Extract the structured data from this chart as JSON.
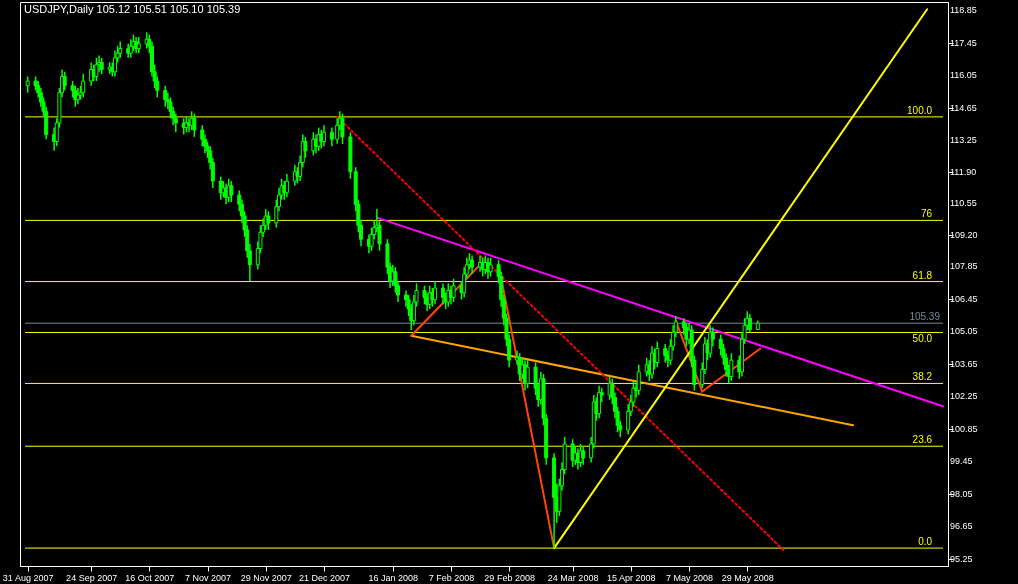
{
  "chart_data": {
    "type": "candlestick",
    "title": "USDJPY,Daily  105.12 105.51 105.10 105.39",
    "color": "#00ff00",
    "x": [
      "2007-08-31",
      "2007-09-03",
      "2007-09-04",
      "2007-09-05",
      "2007-09-06",
      "2007-09-07",
      "2007-09-10",
      "2007-09-11",
      "2007-09-12",
      "2007-09-13",
      "2007-09-14",
      "2007-09-17",
      "2007-09-18",
      "2007-09-19",
      "2007-09-20",
      "2007-09-21",
      "2007-09-24",
      "2007-09-25",
      "2007-09-26",
      "2007-09-27",
      "2007-09-28",
      "2007-10-01",
      "2007-10-02",
      "2007-10-03",
      "2007-10-04",
      "2007-10-05",
      "2007-10-08",
      "2007-10-09",
      "2007-10-10",
      "2007-10-11",
      "2007-10-12",
      "2007-10-15",
      "2007-10-16",
      "2007-10-17",
      "2007-10-18",
      "2007-10-19",
      "2007-10-22",
      "2007-10-23",
      "2007-10-24",
      "2007-10-25",
      "2007-10-26",
      "2007-10-29",
      "2007-10-30",
      "2007-10-31",
      "2007-11-01",
      "2007-11-02",
      "2007-11-05",
      "2007-11-06",
      "2007-11-07",
      "2007-11-08",
      "2007-11-09",
      "2007-11-12",
      "2007-11-13",
      "2007-11-14",
      "2007-11-15",
      "2007-11-16",
      "2007-11-19",
      "2007-11-20",
      "2007-11-21",
      "2007-11-22",
      "2007-11-23",
      "2007-11-26",
      "2007-11-27",
      "2007-11-28",
      "2007-11-29",
      "2007-11-30",
      "2007-12-03",
      "2007-12-04",
      "2007-12-05",
      "2007-12-06",
      "2007-12-07",
      "2007-12-10",
      "2007-12-11",
      "2007-12-12",
      "2007-12-13",
      "2007-12-14",
      "2007-12-17",
      "2007-12-18",
      "2007-12-19",
      "2007-12-20",
      "2007-12-21",
      "2007-12-24",
      "2007-12-26",
      "2007-12-27",
      "2007-12-28",
      "2007-12-31",
      "2008-01-02",
      "2008-01-03",
      "2008-01-04",
      "2008-01-07",
      "2008-01-08",
      "2008-01-09",
      "2008-01-10",
      "2008-01-11",
      "2008-01-14",
      "2008-01-15",
      "2008-01-16",
      "2008-01-17",
      "2008-01-18",
      "2008-01-21",
      "2008-01-22",
      "2008-01-23",
      "2008-01-24",
      "2008-01-25",
      "2008-01-28",
      "2008-01-29",
      "2008-01-30",
      "2008-01-31",
      "2008-02-01",
      "2008-02-04",
      "2008-02-05",
      "2008-02-06",
      "2008-02-07",
      "2008-02-08",
      "2008-02-11",
      "2008-02-12",
      "2008-02-13",
      "2008-02-14",
      "2008-02-15",
      "2008-02-18",
      "2008-02-19",
      "2008-02-20",
      "2008-02-21",
      "2008-02-22",
      "2008-02-25",
      "2008-02-26",
      "2008-02-27",
      "2008-02-28",
      "2008-02-29",
      "2008-03-03",
      "2008-03-04",
      "2008-03-05",
      "2008-03-06",
      "2008-03-07",
      "2008-03-10",
      "2008-03-11",
      "2008-03-12",
      "2008-03-13",
      "2008-03-14",
      "2008-03-17",
      "2008-03-18",
      "2008-03-19",
      "2008-03-20",
      "2008-03-21",
      "2008-03-24",
      "2008-03-25",
      "2008-03-26",
      "2008-03-27",
      "2008-03-28",
      "2008-03-31",
      "2008-04-01",
      "2008-04-02",
      "2008-04-03",
      "2008-04-04",
      "2008-04-07",
      "2008-04-08",
      "2008-04-09",
      "2008-04-10",
      "2008-04-11",
      "2008-04-14",
      "2008-04-15",
      "2008-04-16",
      "2008-04-17",
      "2008-04-18",
      "2008-04-21",
      "2008-04-22",
      "2008-04-23",
      "2008-04-24",
      "2008-04-25",
      "2008-04-28",
      "2008-04-29",
      "2008-04-30",
      "2008-05-01",
      "2008-05-02",
      "2008-05-05",
      "2008-05-06",
      "2008-05-07",
      "2008-05-08",
      "2008-05-09",
      "2008-05-12",
      "2008-05-13",
      "2008-05-14",
      "2008-05-15",
      "2008-05-16",
      "2008-05-19",
      "2008-05-20",
      "2008-05-21",
      "2008-05-22",
      "2008-05-23",
      "2008-05-26",
      "2008-05-27",
      "2008-05-28",
      "2008-05-29",
      "2008-05-30",
      "2008-06-02"
    ],
    "ohlc": [
      [
        115.6,
        116.0,
        115.3,
        115.8
      ],
      [
        115.8,
        116.0,
        115.4,
        115.6
      ],
      [
        115.6,
        115.8,
        115.1,
        115.3
      ],
      [
        115.3,
        115.5,
        114.7,
        114.9
      ],
      [
        114.9,
        115.1,
        114.3,
        114.5
      ],
      [
        114.5,
        114.7,
        113.3,
        113.5
      ],
      [
        113.5,
        113.8,
        112.8,
        113.2
      ],
      [
        113.2,
        114.2,
        113.0,
        114.0
      ],
      [
        114.0,
        115.5,
        113.8,
        115.3
      ],
      [
        115.3,
        116.3,
        115.1,
        116.0
      ],
      [
        116.0,
        116.2,
        115.4,
        115.6
      ],
      [
        115.6,
        115.8,
        115.1,
        115.4
      ],
      [
        115.4,
        115.6,
        114.7,
        115.0
      ],
      [
        115.0,
        115.5,
        114.8,
        115.2
      ],
      [
        115.2,
        115.6,
        115.0,
        115.3
      ],
      [
        115.3,
        116.1,
        115.1,
        115.8
      ],
      [
        115.8,
        116.6,
        115.6,
        116.3
      ],
      [
        116.3,
        116.5,
        115.8,
        116.0
      ],
      [
        116.0,
        116.8,
        115.8,
        116.5
      ],
      [
        116.5,
        116.9,
        116.2,
        116.6
      ],
      [
        116.6,
        116.8,
        116.1,
        116.3
      ],
      [
        116.3,
        116.6,
        116.1,
        116.4
      ],
      [
        116.4,
        116.6,
        116.0,
        116.2
      ],
      [
        116.2,
        117.1,
        116.0,
        116.8
      ],
      [
        116.8,
        117.3,
        116.6,
        117.0
      ],
      [
        117.0,
        117.5,
        116.8,
        117.2
      ],
      [
        117.2,
        117.4,
        116.8,
        117.0
      ],
      [
        117.0,
        117.6,
        116.8,
        117.3
      ],
      [
        117.3,
        117.8,
        117.1,
        117.5
      ],
      [
        117.5,
        117.7,
        117.0,
        117.2
      ],
      [
        117.2,
        117.7,
        117.0,
        117.4
      ],
      [
        117.4,
        117.9,
        117.2,
        117.6
      ],
      [
        117.6,
        117.8,
        117.0,
        117.3
      ],
      [
        117.3,
        117.5,
        116.0,
        116.2
      ],
      [
        116.2,
        116.5,
        115.5,
        115.8
      ],
      [
        115.8,
        116.0,
        115.1,
        115.4
      ],
      [
        115.4,
        115.6,
        114.7,
        115.0
      ],
      [
        115.0,
        115.3,
        114.6,
        114.9
      ],
      [
        114.9,
        115.1,
        114.2,
        114.5
      ],
      [
        114.5,
        114.7,
        113.9,
        114.2
      ],
      [
        114.2,
        114.4,
        113.6,
        114.0
      ],
      [
        114.0,
        114.2,
        113.5,
        113.8
      ],
      [
        113.8,
        114.3,
        113.6,
        114.0
      ],
      [
        114.0,
        114.2,
        113.6,
        113.9
      ],
      [
        113.9,
        114.5,
        113.7,
        114.2
      ],
      [
        114.2,
        114.4,
        113.4,
        113.7
      ],
      [
        113.7,
        113.9,
        113.0,
        113.3
      ],
      [
        113.3,
        113.5,
        112.7,
        113.0
      ],
      [
        113.0,
        113.2,
        112.5,
        112.8
      ],
      [
        112.8,
        113.0,
        112.0,
        112.3
      ],
      [
        112.3,
        112.5,
        111.2,
        111.5
      ],
      [
        111.5,
        111.7,
        110.7,
        111.0
      ],
      [
        111.0,
        111.5,
        110.8,
        111.2
      ],
      [
        111.2,
        111.4,
        110.5,
        110.8
      ],
      [
        110.8,
        111.6,
        110.6,
        111.3
      ],
      [
        111.3,
        111.5,
        110.6,
        110.9
      ],
      [
        110.9,
        111.1,
        110.2,
        110.5
      ],
      [
        110.5,
        110.7,
        109.7,
        110.0
      ],
      [
        110.0,
        110.2,
        109.1,
        109.4
      ],
      [
        109.4,
        109.6,
        108.2,
        108.5
      ],
      [
        108.5,
        108.8,
        107.2,
        107.9
      ],
      [
        107.9,
        108.9,
        107.7,
        108.6
      ],
      [
        108.6,
        109.6,
        108.4,
        109.3
      ],
      [
        109.3,
        109.9,
        109.1,
        109.6
      ],
      [
        109.6,
        110.3,
        109.4,
        110.0
      ],
      [
        110.0,
        110.2,
        109.4,
        109.7
      ],
      [
        109.7,
        110.7,
        109.5,
        110.4
      ],
      [
        110.4,
        111.2,
        110.2,
        110.9
      ],
      [
        110.9,
        111.6,
        110.7,
        111.3
      ],
      [
        111.3,
        111.5,
        110.7,
        111.0
      ],
      [
        111.0,
        111.8,
        110.8,
        111.5
      ],
      [
        111.5,
        112.2,
        111.3,
        111.9
      ],
      [
        111.9,
        112.1,
        111.4,
        111.7
      ],
      [
        111.7,
        112.6,
        111.5,
        112.3
      ],
      [
        112.3,
        113.5,
        112.1,
        113.2
      ],
      [
        113.2,
        113.4,
        112.5,
        112.8
      ],
      [
        112.8,
        113.6,
        112.6,
        113.3
      ],
      [
        113.3,
        113.5,
        112.7,
        113.0
      ],
      [
        113.0,
        113.8,
        112.8,
        113.5
      ],
      [
        113.5,
        113.7,
        112.9,
        113.2
      ],
      [
        113.2,
        113.9,
        113.0,
        113.6
      ],
      [
        113.6,
        113.8,
        113.0,
        113.3
      ],
      [
        113.3,
        114.2,
        113.1,
        113.9
      ],
      [
        113.9,
        114.5,
        113.7,
        114.2
      ],
      [
        114.2,
        114.4,
        113.1,
        113.4
      ],
      [
        113.4,
        113.6,
        111.6,
        111.9
      ],
      [
        111.9,
        112.1,
        110.2,
        110.5
      ],
      [
        110.5,
        110.7,
        109.3,
        109.6
      ],
      [
        109.6,
        109.8,
        108.7,
        109.0
      ],
      [
        109.0,
        109.2,
        108.4,
        108.7
      ],
      [
        108.7,
        109.5,
        108.5,
        109.2
      ],
      [
        109.2,
        109.8,
        109.0,
        109.5
      ],
      [
        109.5,
        110.3,
        109.3,
        109.6
      ],
      [
        109.6,
        109.8,
        108.5,
        108.8
      ],
      [
        108.8,
        109.0,
        107.5,
        107.8
      ],
      [
        107.8,
        108.0,
        106.9,
        107.2
      ],
      [
        107.2,
        107.9,
        107.0,
        107.6
      ],
      [
        107.6,
        107.8,
        106.7,
        107.0
      ],
      [
        107.0,
        107.2,
        106.3,
        106.6
      ],
      [
        106.6,
        106.8,
        106.1,
        106.4
      ],
      [
        106.4,
        106.6,
        105.7,
        106.0
      ],
      [
        106.0,
        106.2,
        105.1,
        105.5
      ],
      [
        105.5,
        106.6,
        105.3,
        106.3
      ],
      [
        106.3,
        107.1,
        106.1,
        106.8
      ],
      [
        106.8,
        107.0,
        106.2,
        106.5
      ],
      [
        106.5,
        106.7,
        105.9,
        106.2
      ],
      [
        106.2,
        107.0,
        106.0,
        106.7
      ],
      [
        106.7,
        106.9,
        106.1,
        106.4
      ],
      [
        106.4,
        107.2,
        106.2,
        106.9
      ],
      [
        106.9,
        107.1,
        106.2,
        106.5
      ],
      [
        106.5,
        106.7,
        106.0,
        106.3
      ],
      [
        106.3,
        107.1,
        106.1,
        106.8
      ],
      [
        106.8,
        107.0,
        106.2,
        106.5
      ],
      [
        106.5,
        107.3,
        106.3,
        107.0
      ],
      [
        107.0,
        107.2,
        106.4,
        106.7
      ],
      [
        106.7,
        107.8,
        106.5,
        107.5
      ],
      [
        107.5,
        108.2,
        107.3,
        107.9
      ],
      [
        107.9,
        108.4,
        107.7,
        108.1
      ],
      [
        108.1,
        108.3,
        107.5,
        107.8
      ],
      [
        107.8,
        108.3,
        107.6,
        108.0
      ],
      [
        108.0,
        108.2,
        107.4,
        107.7
      ],
      [
        107.7,
        108.3,
        107.5,
        108.0
      ],
      [
        108.0,
        108.2,
        107.3,
        107.6
      ],
      [
        107.6,
        108.2,
        107.4,
        107.9
      ],
      [
        107.9,
        108.1,
        107.1,
        107.4
      ],
      [
        107.4,
        107.6,
        106.1,
        106.4
      ],
      [
        106.4,
        106.6,
        105.3,
        105.6
      ],
      [
        105.6,
        105.8,
        104.4,
        104.7
      ],
      [
        104.7,
        104.9,
        103.5,
        103.8
      ],
      [
        103.8,
        104.2,
        103.6,
        103.9
      ],
      [
        103.9,
        104.1,
        102.9,
        103.2
      ],
      [
        103.2,
        103.9,
        103.0,
        103.6
      ],
      [
        103.6,
        103.8,
        102.5,
        102.8
      ],
      [
        102.8,
        103.8,
        102.6,
        103.5
      ],
      [
        103.5,
        103.7,
        102.3,
        102.6
      ],
      [
        102.6,
        102.8,
        101.8,
        102.1
      ],
      [
        102.1,
        103.3,
        101.9,
        103.0
      ],
      [
        103.0,
        103.2,
        101.0,
        101.3
      ],
      [
        101.3,
        101.5,
        99.3,
        99.6
      ],
      [
        99.6,
        99.8,
        95.72,
        97.9
      ],
      [
        97.9,
        98.5,
        96.8,
        97.3
      ],
      [
        97.3,
        98.7,
        97.1,
        98.4
      ],
      [
        98.4,
        99.4,
        98.2,
        99.1
      ],
      [
        99.1,
        100.5,
        98.9,
        100.2
      ],
      [
        100.2,
        100.4,
        99.2,
        99.5
      ],
      [
        99.5,
        100.1,
        99.3,
        99.8
      ],
      [
        99.8,
        100.0,
        99.1,
        99.4
      ],
      [
        99.4,
        100.2,
        99.2,
        99.9
      ],
      [
        99.9,
        100.1,
        99.3,
        99.6
      ],
      [
        99.6,
        100.5,
        99.4,
        100.2
      ],
      [
        100.2,
        102.3,
        100.0,
        102.0
      ],
      [
        102.0,
        102.2,
        101.2,
        101.5
      ],
      [
        101.5,
        102.7,
        101.3,
        102.4
      ],
      [
        102.4,
        102.6,
        102.0,
        102.3
      ],
      [
        102.3,
        103.1,
        102.1,
        102.8
      ],
      [
        102.8,
        103.0,
        101.9,
        102.2
      ],
      [
        102.2,
        102.4,
        101.3,
        101.6
      ],
      [
        101.6,
        101.8,
        100.7,
        101.0
      ],
      [
        101.0,
        101.2,
        100.5,
        100.8
      ],
      [
        100.8,
        101.9,
        100.6,
        101.6
      ],
      [
        101.6,
        102.3,
        101.4,
        102.0
      ],
      [
        102.0,
        102.9,
        101.8,
        102.6
      ],
      [
        102.6,
        102.8,
        102.2,
        102.5
      ],
      [
        102.5,
        103.6,
        102.3,
        103.3
      ],
      [
        103.3,
        103.9,
        103.1,
        103.6
      ],
      [
        103.6,
        103.8,
        102.9,
        103.2
      ],
      [
        103.2,
        104.4,
        103.0,
        104.1
      ],
      [
        104.1,
        104.3,
        103.4,
        103.7
      ],
      [
        103.7,
        104.6,
        103.5,
        104.3
      ],
      [
        104.3,
        104.5,
        103.7,
        104.0
      ],
      [
        104.0,
        104.2,
        103.5,
        103.8
      ],
      [
        103.8,
        104.7,
        103.6,
        104.4
      ],
      [
        104.4,
        105.3,
        104.2,
        105.0
      ],
      [
        105.0,
        105.7,
        104.8,
        105.45
      ],
      [
        105.45,
        105.6,
        104.9,
        105.2
      ],
      [
        105.2,
        105.4,
        104.4,
        104.7
      ],
      [
        104.7,
        105.4,
        104.5,
        105.1
      ],
      [
        105.1,
        105.3,
        103.5,
        103.8
      ],
      [
        103.8,
        104.0,
        102.5,
        102.75
      ],
      [
        102.75,
        103.7,
        102.6,
        103.4
      ],
      [
        103.4,
        104.8,
        103.2,
        104.5
      ],
      [
        104.5,
        104.7,
        103.8,
        104.1
      ],
      [
        104.1,
        105.3,
        103.9,
        105.0
      ],
      [
        105.0,
        105.2,
        104.4,
        104.7
      ],
      [
        104.7,
        104.9,
        104.0,
        104.3
      ],
      [
        104.3,
        104.5,
        103.6,
        103.9
      ],
      [
        103.9,
        104.1,
        103.1,
        103.4
      ],
      [
        103.4,
        103.6,
        102.8,
        103.1
      ],
      [
        103.1,
        104.1,
        102.9,
        103.8
      ],
      [
        103.8,
        104.0,
        103.0,
        103.3
      ],
      [
        103.3,
        105.0,
        103.1,
        104.7
      ],
      [
        104.7,
        105.6,
        104.5,
        105.3
      ],
      [
        105.3,
        105.9,
        105.1,
        105.6
      ],
      [
        105.6,
        105.8,
        105.0,
        105.12
      ],
      [
        105.12,
        105.51,
        105.1,
        105.39
      ]
    ],
    "series": [
      {
        "type": "line",
        "color": "#ff00ff",
        "line_style": "solid",
        "x": [
          "2008-01-10",
          "2008-08-11"
        ],
        "values": [
          109.93,
          101.82
        ]
      },
      {
        "type": "line",
        "color": "#ffa500",
        "line_style": "solid",
        "x": [
          "2008-01-23",
          "2008-07-08"
        ],
        "values": [
          104.85,
          101.0
        ]
      },
      {
        "type": "line",
        "color": "#ff4500",
        "line_style": "solid",
        "x": [
          "2008-01-23",
          "2008-02-18"
        ],
        "values": [
          104.85,
          107.9
        ]
      },
      {
        "type": "line",
        "color": "#ff4500",
        "line_style": "solid",
        "x": [
          "2008-02-25",
          "2008-03-17"
        ],
        "values": [
          107.9,
          95.72
        ]
      },
      {
        "type": "line",
        "color": "#ff4500",
        "line_style": "solid",
        "x": [
          "2008-05-02",
          "2008-05-12"
        ],
        "values": [
          105.5,
          102.45
        ]
      },
      {
        "type": "line",
        "color": "#ff4500",
        "line_style": "solid",
        "x": [
          "2008-05-12",
          "2008-06-03"
        ],
        "values": [
          102.45,
          104.3
        ]
      },
      {
        "type": "line",
        "color": "#ff0000",
        "line_style": "dotted",
        "x": [
          "2007-12-26",
          "2008-06-12"
        ],
        "values": [
          114.26,
          95.6
        ]
      },
      {
        "type": "line",
        "color": "#ffff00",
        "line_style": "solid",
        "x": [
          "2008-03-17",
          "2008-08-05"
        ],
        "values": [
          95.72,
          118.89
        ]
      }
    ],
    "ref_lines": [
      {
        "axis": "y",
        "value": 114.26,
        "color": "#ffff00"
      },
      {
        "axis": "y",
        "value": 109.81,
        "color": "#ffff00"
      },
      {
        "axis": "y",
        "value": 107.18,
        "color": "#ffff00"
      },
      {
        "axis": "y",
        "value": 105.39,
        "label": "105.39",
        "color": "#778899"
      },
      {
        "axis": "y",
        "value": 104.99,
        "color": "#ffff00"
      },
      {
        "axis": "y",
        "value": 102.8,
        "color": "#ffff00"
      },
      {
        "axis": "y",
        "value": 100.1,
        "color": "#ffff00"
      },
      {
        "axis": "y",
        "value": 95.72,
        "color": "#ffff00"
      }
    ],
    "annotations": [
      {
        "text": "100.0",
        "x": "2008-08-08",
        "y": 114.26
      },
      {
        "text": "76",
        "x": "2008-08-08",
        "y": 109.81
      },
      {
        "text": "61.8",
        "x": "2008-08-08",
        "y": 107.18
      },
      {
        "text": "50.0",
        "x": "2008-08-08",
        "y": 104.99
      },
      {
        "text": "38.2",
        "x": "2008-08-08",
        "y": 102.8
      },
      {
        "text": "23.6",
        "x": "2008-08-08",
        "y": 100.1
      },
      {
        "text": "0.0",
        "x": "2008-08-08",
        "y": 95.72
      }
    ],
    "xlim": [
      "2007-08-30",
      "2008-08-11"
    ],
    "ylim": [
      94.95,
      119.2
    ],
    "xticks": [
      {
        "value": "2007-08-31",
        "label": "31 Aug 2007"
      },
      {
        "value": "2007-09-24",
        "label": "24 Sep 2007"
      },
      {
        "value": "2007-10-16",
        "label": "16 Oct 2007"
      },
      {
        "value": "2007-11-07",
        "label": "7 Nov 2007"
      },
      {
        "value": "2007-11-29",
        "label": "29 Nov 2007"
      },
      {
        "value": "2007-12-21",
        "label": "21 Dec 2007"
      },
      {
        "value": "2008-01-16",
        "label": "16 Jan 2008"
      },
      {
        "value": "2008-02-07",
        "label": "7 Feb 2008"
      },
      {
        "value": "2008-02-29",
        "label": "29 Feb 2008"
      },
      {
        "value": "2008-03-24",
        "label": "24 Mar 2008"
      },
      {
        "value": "2008-04-15",
        "label": "15 Apr 2008"
      },
      {
        "value": "2008-05-07",
        "label": "7 May 2008"
      },
      {
        "value": "2008-05-29",
        "label": "29 May 2008"
      }
    ],
    "yticks": [
      118.85,
      117.45,
      116.05,
      114.65,
      113.25,
      {
        "value": 111.9,
        "label": "111.90"
      },
      110.55,
      {
        "value": 109.2,
        "label": "109.20"
      },
      107.85,
      106.45,
      105.05,
      103.65,
      102.25,
      100.85,
      99.45,
      98.05,
      96.65,
      95.25
    ]
  }
}
